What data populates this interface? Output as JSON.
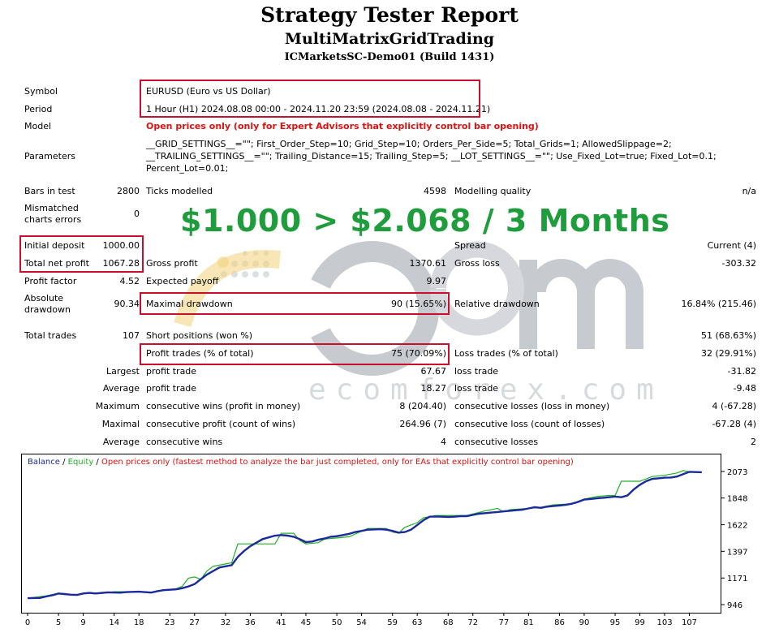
{
  "header": {
    "title": "Strategy Tester Report",
    "subtitle": "MultiMatrixGridTrading",
    "server": "ICMarketsSC-Demo01 (Build 1431)"
  },
  "info": {
    "symbol_label": "Symbol",
    "symbol_value": "EURUSD (Euro vs US Dollar)",
    "period_label": "Period",
    "period_value": "1 Hour (H1) 2024.08.08 00:00 - 2024.11.20 23:59 (2024.08.08 - 2024.11.21)",
    "model_label": "Model",
    "model_value": "Open prices only (only for Expert Advisors that explicitly control bar opening)",
    "parameters_label": "Parameters",
    "parameters_line1": "__GRID_SETTINGS__=\"\"; First_Order_Step=10; Grid_Step=10; Orders_Per_Side=5; Total_Grids=1; AllowedSlippage=2;",
    "parameters_line2": "__TRAILING_SETTINGS__=\"\"; Trailing_Distance=15; Trailing_Step=5; __LOT_SETTINGS__=\"\"; Use_Fixed_Lot=true; Fixed_Lot=0.1;",
    "parameters_line3": "Percent_Lot=0.01;"
  },
  "stats": {
    "bars_label": "Bars in test",
    "bars_value": "2800",
    "ticks_label": "Ticks modelled",
    "ticks_value": "4598",
    "quality_label": "Modelling quality",
    "quality_value": "n/a",
    "mismatched_label1": "Mismatched",
    "mismatched_label2": "charts errors",
    "mismatched_value": "0",
    "initial_label": "Initial deposit",
    "initial_value": "1000.00",
    "spread_label": "Spread",
    "spread_value": "Current (4)",
    "net_label": "Total net profit",
    "net_value": "1067.28",
    "gross_profit_label": "Gross profit",
    "gross_profit_value": "1370.61",
    "gross_loss_label": "Gross loss",
    "gross_loss_value": "-303.32",
    "pf_label": "Profit factor",
    "pf_value": "4.52",
    "payoff_label": "Expected payoff",
    "payoff_value": "9.97",
    "abs_dd_label1": "Absolute",
    "abs_dd_label2": "drawdown",
    "abs_dd_value": "90.34",
    "max_dd_label": "Maximal drawdown",
    "max_dd_value": "90 (15.65%)",
    "rel_dd_label": "Relative drawdown",
    "rel_dd_value": "16.84% (215.46)",
    "trades_label": "Total trades",
    "trades_value": "107",
    "short_label": "Short positions (won %)",
    "short_value": "51 (68.63%)",
    "profit_trades_label": "Profit trades (% of total)",
    "profit_trades_value": "75 (70.09%)",
    "loss_trades_label": "Loss trades (% of total)",
    "loss_trades_value": "32 (29.91%)",
    "largest_label": "Largest",
    "largest_pt_label": "profit trade",
    "largest_pt_value": "67.67",
    "largest_lt_label": "loss trade",
    "largest_lt_value": "-31.82",
    "average_label": "Average",
    "average_pt_label": "profit trade",
    "average_pt_value": "18.27",
    "average_lt_label": "loss trade",
    "average_lt_value": "-9.48",
    "maximum_label": "Maximum",
    "max_cw_label": "consecutive wins (profit in money)",
    "max_cw_value": "8 (204.40)",
    "max_cl_label": "consecutive losses (loss in money)",
    "max_cl_value": "4 (-67.28)",
    "maximal_label": "Maximal",
    "mxl_cp_label": "consecutive profit (count of wins)",
    "mxl_cp_value": "264.96 (7)",
    "mxl_cl_label": "consecutive loss (count of losses)",
    "mxl_cl_value": "-67.28 (4)",
    "avg_label": "Average",
    "avg_cw_label": "consecutive wins",
    "avg_cw_value": "4",
    "avg_cl_label": "consecutive losses",
    "avg_cl_value": "2"
  },
  "overlay": {
    "promo_text": "$1.000 > $2.068 / 3 Months",
    "watermark_text": "ecomforex.com"
  },
  "colors": {
    "balance": "#1a2a9c",
    "equity": "#22b022",
    "highlight_box": "#c8102e",
    "promo": "#1f9d3c"
  },
  "chart_data": {
    "type": "line",
    "legend": {
      "balance": "Balance",
      "sep1": " / ",
      "equity": "Equity",
      "sep2": " / ",
      "note": "Open prices only (fastest method to analyze the bar just completed, only for EAs that explicitly control bar opening)"
    },
    "x_ticks": [
      0,
      5,
      9,
      14,
      18,
      23,
      27,
      32,
      36,
      41,
      45,
      50,
      54,
      59,
      63,
      68,
      72,
      77,
      81,
      86,
      90,
      95,
      99,
      103,
      107
    ],
    "y_ticks": [
      946,
      1171,
      1397,
      1622,
      1848,
      2073
    ],
    "xlim": [
      0,
      111
    ],
    "ylim": [
      946,
      2100
    ],
    "balance": [
      [
        0,
        1000
      ],
      [
        2,
        1002
      ],
      [
        3,
        1015
      ],
      [
        4,
        1025
      ],
      [
        5,
        1040
      ],
      [
        6,
        1035
      ],
      [
        7,
        1030
      ],
      [
        8,
        1028
      ],
      [
        9,
        1040
      ],
      [
        10,
        1045
      ],
      [
        11,
        1040
      ],
      [
        12,
        1045
      ],
      [
        13,
        1050
      ],
      [
        15,
        1047
      ],
      [
        16,
        1052
      ],
      [
        18,
        1055
      ],
      [
        20,
        1048
      ],
      [
        21,
        1060
      ],
      [
        22,
        1068
      ],
      [
        24,
        1075
      ],
      [
        25,
        1085
      ],
      [
        26,
        1100
      ],
      [
        27,
        1120
      ],
      [
        28,
        1160
      ],
      [
        29,
        1200
      ],
      [
        30,
        1230
      ],
      [
        31,
        1260
      ],
      [
        32,
        1270
      ],
      [
        33,
        1280
      ],
      [
        34,
        1350
      ],
      [
        35,
        1400
      ],
      [
        36,
        1440
      ],
      [
        37,
        1470
      ],
      [
        38,
        1500
      ],
      [
        39,
        1515
      ],
      [
        40,
        1530
      ],
      [
        41,
        1535
      ],
      [
        42,
        1530
      ],
      [
        43,
        1520
      ],
      [
        44,
        1500
      ],
      [
        45,
        1475
      ],
      [
        46,
        1480
      ],
      [
        47,
        1495
      ],
      [
        48,
        1505
      ],
      [
        49,
        1520
      ],
      [
        50,
        1525
      ],
      [
        51,
        1535
      ],
      [
        52,
        1545
      ],
      [
        53,
        1560
      ],
      [
        54,
        1570
      ],
      [
        55,
        1580
      ],
      [
        56,
        1582
      ],
      [
        57,
        1585
      ],
      [
        58,
        1580
      ],
      [
        59,
        1570
      ],
      [
        60,
        1555
      ],
      [
        61,
        1560
      ],
      [
        62,
        1580
      ],
      [
        63,
        1620
      ],
      [
        64,
        1660
      ],
      [
        65,
        1690
      ],
      [
        66,
        1692
      ],
      [
        67,
        1690
      ],
      [
        68,
        1688
      ],
      [
        69,
        1690
      ],
      [
        70,
        1695
      ],
      [
        71,
        1695
      ],
      [
        72,
        1705
      ],
      [
        73,
        1715
      ],
      [
        74,
        1720
      ],
      [
        75,
        1725
      ],
      [
        76,
        1730
      ],
      [
        77,
        1735
      ],
      [
        78,
        1740
      ],
      [
        79,
        1745
      ],
      [
        80,
        1750
      ],
      [
        81,
        1760
      ],
      [
        82,
        1770
      ],
      [
        83,
        1765
      ],
      [
        84,
        1775
      ],
      [
        85,
        1780
      ],
      [
        86,
        1785
      ],
      [
        87,
        1790
      ],
      [
        88,
        1800
      ],
      [
        89,
        1815
      ],
      [
        90,
        1835
      ],
      [
        91,
        1840
      ],
      [
        92,
        1845
      ],
      [
        93,
        1850
      ],
      [
        94,
        1855
      ],
      [
        95,
        1860
      ],
      [
        96,
        1855
      ],
      [
        97,
        1870
      ],
      [
        98,
        1920
      ],
      [
        99,
        1960
      ],
      [
        100,
        1990
      ],
      [
        101,
        2010
      ],
      [
        102,
        2015
      ],
      [
        103,
        2020
      ],
      [
        104,
        2022
      ],
      [
        105,
        2030
      ],
      [
        106,
        2050
      ],
      [
        107,
        2070
      ],
      [
        108,
        2068
      ],
      [
        109,
        2066
      ]
    ],
    "equity": [
      [
        0,
        1000
      ],
      [
        3,
        1020
      ],
      [
        5,
        1042
      ],
      [
        6,
        1030
      ],
      [
        8,
        1030
      ],
      [
        10,
        1048
      ],
      [
        12,
        1040
      ],
      [
        14,
        1055
      ],
      [
        17,
        1055
      ],
      [
        20,
        1050
      ],
      [
        22,
        1070
      ],
      [
        24,
        1080
      ],
      [
        25,
        1100
      ],
      [
        26,
        1170
      ],
      [
        27,
        1180
      ],
      [
        28,
        1160
      ],
      [
        29,
        1230
      ],
      [
        30,
        1270
      ],
      [
        31,
        1280
      ],
      [
        32,
        1290
      ],
      [
        33,
        1300
      ],
      [
        34,
        1460
      ],
      [
        40,
        1460
      ],
      [
        41,
        1550
      ],
      [
        43,
        1550
      ],
      [
        44,
        1490
      ],
      [
        45,
        1460
      ],
      [
        47,
        1470
      ],
      [
        48,
        1500
      ],
      [
        50,
        1510
      ],
      [
        52,
        1520
      ],
      [
        55,
        1590
      ],
      [
        58,
        1590
      ],
      [
        59,
        1560
      ],
      [
        60,
        1550
      ],
      [
        61,
        1600
      ],
      [
        63,
        1640
      ],
      [
        64,
        1680
      ],
      [
        66,
        1700
      ],
      [
        69,
        1700
      ],
      [
        71,
        1700
      ],
      [
        74,
        1740
      ],
      [
        76,
        1760
      ],
      [
        77,
        1730
      ],
      [
        78,
        1750
      ],
      [
        81,
        1760
      ],
      [
        83,
        1770
      ],
      [
        85,
        1790
      ],
      [
        88,
        1800
      ],
      [
        90,
        1840
      ],
      [
        92,
        1860
      ],
      [
        94,
        1870
      ],
      [
        95,
        1870
      ],
      [
        96,
        1990
      ],
      [
        99,
        1990
      ],
      [
        101,
        2030
      ],
      [
        103,
        2040
      ],
      [
        105,
        2060
      ],
      [
        106,
        2080
      ],
      [
        107,
        2070
      ],
      [
        109,
        2066
      ]
    ]
  }
}
